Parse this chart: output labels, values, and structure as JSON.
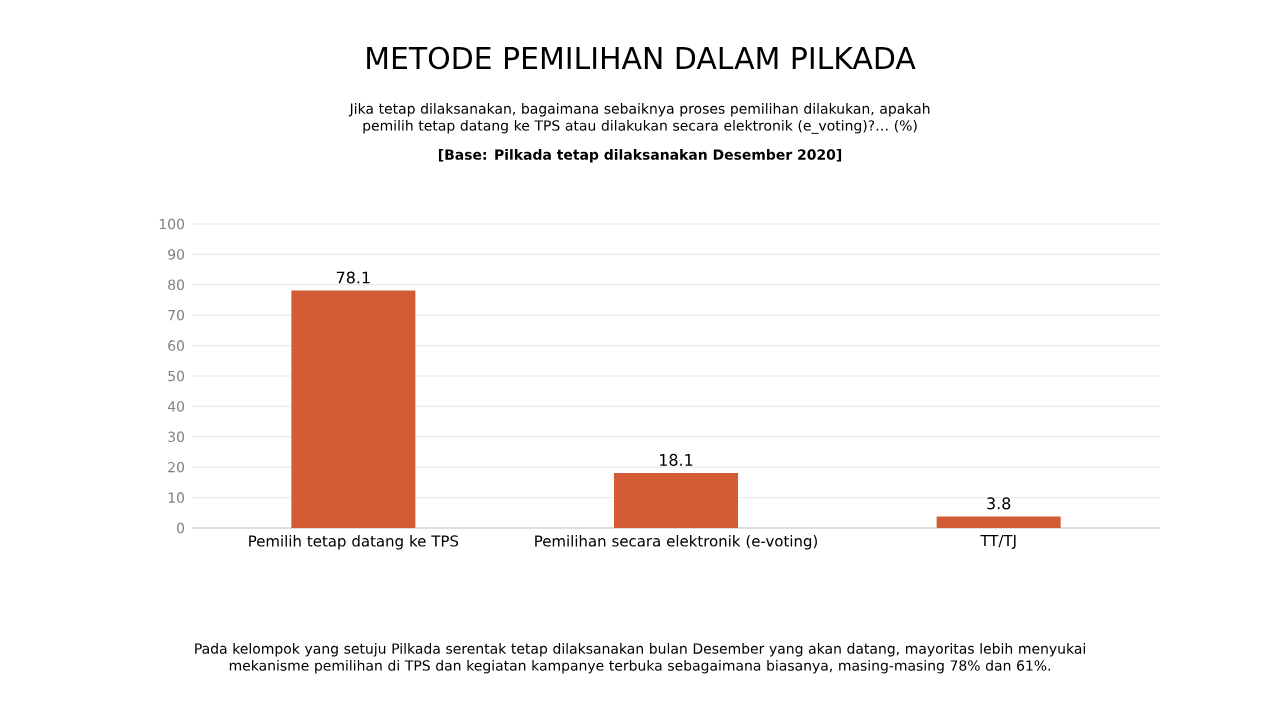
{
  "chart_data": {
    "type": "bar",
    "title": "METODE PEMILIHAN DALAM PILKADA",
    "subtitle": "Jika tetap dilaksanakan, bagaimana sebaiknya proses pemilihan dilakukan, apakah pemilih tetap datang ke TPS atau dilakukan secara elektronik (e_voting)?… (%)",
    "annotations": [
      "[Base: Pilkada tetap dilaksanakan Desember 2020]",
      "Pada kelompok yang setuju Pilkada serentak tetap dilaksanakan bulan Desember yang akan datang, mayoritas lebih menyukai mekanisme pemilihan di TPS dan kegiatan kampanye terbuka sebagaimana biasanya, masing-masing 78% dan 61%."
    ],
    "categories": [
      "Pemilih tetap datang ke TPS",
      "Pemilihan secara elektronik (e-voting)",
      "TT/TJ"
    ],
    "values": [
      78.1,
      18.1,
      3.8
    ],
    "color": "#d35c37",
    "ylim": [
      0,
      100
    ],
    "yticks": [
      0,
      10,
      20,
      30,
      40,
      50,
      60,
      70,
      80,
      90,
      100
    ],
    "grid": "y",
    "data_labels": true
  }
}
